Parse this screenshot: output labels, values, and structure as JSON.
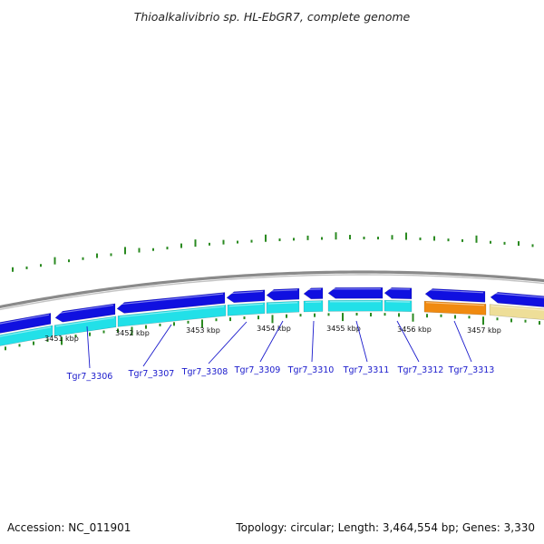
{
  "title": "Thioalkalivibrio sp. HL-EbGR7, complete genome",
  "footer": {
    "accession": "Accession: NC_011901",
    "topology": "Topology: circular; Length: 3,464,554 bp; Genes: 3,330"
  },
  "colors": {
    "backbone": "#8a8a8a",
    "forward_cds": "#1010e0",
    "reverse_cds": "#22e0e8",
    "orange_feature": "#f08a10",
    "yellow_feature": "#eede98",
    "tick": "#2a8a20",
    "label": "#1a1acc"
  },
  "scale_labels": [
    "3451 kbp",
    "3452 kbp",
    "3453 kbp",
    "3454 kbp",
    "3455 kbp",
    "3456 kbp",
    "3457 kbp"
  ],
  "genes": [
    {
      "label": "Tgr7_3306"
    },
    {
      "label": "Tgr7_3307"
    },
    {
      "label": "Tgr7_3308"
    },
    {
      "label": "Tgr7_3309"
    },
    {
      "label": "Tgr7_3310"
    },
    {
      "label": "Tgr7_3311"
    },
    {
      "label": "Tgr7_3312"
    },
    {
      "label": "Tgr7_3313"
    }
  ]
}
